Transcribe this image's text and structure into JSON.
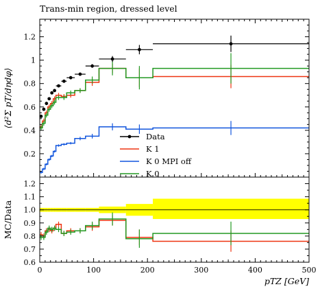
{
  "chart_data": [
    {
      "type": "line",
      "title": "Trans-min region, dressed level",
      "ylabel": "⟨d²Σ pT/dηdφ⟩",
      "xlim": [
        0,
        500
      ],
      "ylim": [
        0,
        1.35
      ],
      "yticks": [
        0.2,
        0.4,
        0.6,
        0.8,
        1,
        1.2
      ],
      "ytick_labels": [
        "0.2",
        "0.4",
        "0.6",
        "0.8",
        "1",
        "1.2"
      ],
      "legend_position": "bottom-center",
      "data": {
        "name": "Data",
        "color": "#000000",
        "points": [
          {
            "x": 2.5,
            "xerr": 2.5,
            "y": 0.52,
            "yerr": 0.01
          },
          {
            "x": 7.5,
            "xerr": 2.5,
            "y": 0.58,
            "yerr": 0.01
          },
          {
            "x": 12.5,
            "xerr": 2.5,
            "y": 0.63,
            "yerr": 0.01
          },
          {
            "x": 17.5,
            "xerr": 2.5,
            "y": 0.67,
            "yerr": 0.01
          },
          {
            "x": 22.5,
            "xerr": 2.5,
            "y": 0.72,
            "yerr": 0.01
          },
          {
            "x": 27.5,
            "xerr": 2.5,
            "y": 0.74,
            "yerr": 0.01
          },
          {
            "x": 35,
            "xerr": 5,
            "y": 0.78,
            "yerr": 0.01
          },
          {
            "x": 45,
            "xerr": 5,
            "y": 0.82,
            "yerr": 0.01
          },
          {
            "x": 57.5,
            "xerr": 7.5,
            "y": 0.85,
            "yerr": 0.01
          },
          {
            "x": 75,
            "xerr": 10,
            "y": 0.88,
            "yerr": 0.01
          },
          {
            "x": 97.5,
            "xerr": 12.5,
            "y": 0.95,
            "yerr": 0.015
          },
          {
            "x": 135,
            "xerr": 25,
            "y": 1.01,
            "yerr": 0.025
          },
          {
            "x": 185,
            "xerr": 25,
            "y": 1.09,
            "yerr": 0.04
          },
          {
            "x": 355,
            "xerr": 145,
            "y": 1.14,
            "yerr": 0.07
          }
        ]
      },
      "edges": [
        0,
        5,
        10,
        15,
        20,
        25,
        30,
        40,
        50,
        65,
        85,
        110,
        160,
        210,
        500
      ],
      "series": [
        {
          "name": "K 1",
          "color": "#ee3311",
          "values": [
            0.43,
            0.48,
            0.55,
            0.6,
            0.63,
            0.67,
            0.7,
            0.69,
            0.7,
            0.74,
            0.81,
            0.93,
            0.85,
            0.86
          ],
          "errors": [
            0.02,
            0.02,
            0.02,
            0.02,
            0.02,
            0.02,
            0.02,
            0.02,
            0.02,
            0.02,
            0.03,
            0.04,
            0.08,
            0.1
          ]
        },
        {
          "name": "K 0 MPI off",
          "color": "#1155dd",
          "values": [
            0.04,
            0.07,
            0.11,
            0.15,
            0.18,
            0.22,
            0.27,
            0.28,
            0.29,
            0.33,
            0.35,
            0.43,
            0.41,
            0.42
          ],
          "errors": [
            0.01,
            0.01,
            0.01,
            0.01,
            0.01,
            0.01,
            0.01,
            0.01,
            0.01,
            0.015,
            0.02,
            0.03,
            0.04,
            0.06
          ]
        },
        {
          "name": "K 0",
          "color": "#229922",
          "values": [
            0.42,
            0.46,
            0.53,
            0.58,
            0.61,
            0.64,
            0.68,
            0.68,
            0.72,
            0.74,
            0.83,
            0.93,
            0.85,
            0.93
          ],
          "errors": [
            0.02,
            0.02,
            0.02,
            0.02,
            0.02,
            0.02,
            0.02,
            0.02,
            0.02,
            0.02,
            0.03,
            0.06,
            0.1,
            0.13
          ]
        }
      ]
    },
    {
      "type": "line",
      "ylabel": "MC/Data",
      "xlabel": "pTZ [GeV]",
      "xlim": [
        0,
        500
      ],
      "ylim": [
        0.6,
        1.25
      ],
      "xticks": [
        0,
        100,
        200,
        300,
        400,
        500
      ],
      "xtick_labels": [
        "0",
        "100",
        "200",
        "300",
        "400",
        "500"
      ],
      "yticks": [
        0.6,
        0.7,
        0.8,
        0.9,
        1.0,
        1.1,
        1.2
      ],
      "ytick_labels": [
        "0.6",
        "0.7",
        "0.8",
        "0.9",
        "1.0",
        "1.1",
        "1.2"
      ],
      "band_color": "#ffff00",
      "band_lo": [
        0.985,
        0.985,
        0.985,
        0.985,
        0.985,
        0.985,
        0.985,
        0.985,
        0.985,
        0.985,
        0.985,
        0.975,
        0.955,
        0.93
      ],
      "band_hi": [
        1.015,
        1.015,
        1.015,
        1.015,
        1.015,
        1.015,
        1.015,
        1.015,
        1.015,
        1.015,
        1.015,
        1.025,
        1.045,
        1.085
      ],
      "series": [
        {
          "name": "K 1",
          "color": "#ee3311",
          "values": [
            0.81,
            0.8,
            0.84,
            0.85,
            0.84,
            0.86,
            0.89,
            0.82,
            0.84,
            0.84,
            0.87,
            0.92,
            0.79,
            0.76
          ],
          "errors": [
            0.02,
            0.02,
            0.02,
            0.02,
            0.02,
            0.02,
            0.02,
            0.02,
            0.02,
            0.02,
            0.03,
            0.04,
            0.06,
            0.08
          ]
        },
        {
          "name": "K 0",
          "color": "#229922",
          "values": [
            0.79,
            0.79,
            0.83,
            0.86,
            0.85,
            0.86,
            0.85,
            0.82,
            0.83,
            0.84,
            0.88,
            0.93,
            0.78,
            0.82
          ],
          "errors": [
            0.02,
            0.02,
            0.02,
            0.02,
            0.02,
            0.02,
            0.02,
            0.02,
            0.02,
            0.02,
            0.03,
            0.05,
            0.07,
            0.09
          ]
        }
      ]
    }
  ]
}
